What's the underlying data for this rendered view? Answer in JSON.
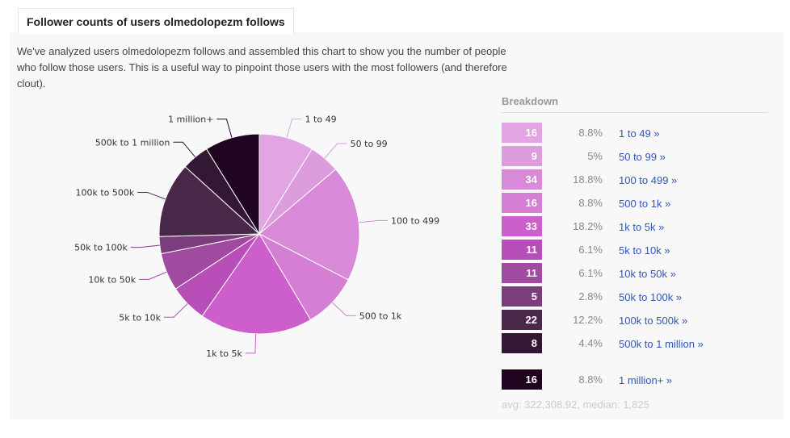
{
  "header": {
    "title": "Follower counts of users olmedolopezm follows"
  },
  "description": "We've analyzed users olmedolopezm follows and assembled this chart to show you the number of people who follow those users. This is a useful way to pinpoint those users with the most followers (and therefore clout).",
  "breakdown": {
    "title": "Breakdown",
    "rows": [
      {
        "count": "16",
        "pct": "8.8%",
        "label": "1 to 49 »"
      },
      {
        "count": "9",
        "pct": "5%",
        "label": "50 to 99 »"
      },
      {
        "count": "34",
        "pct": "18.8%",
        "label": "100 to 499 »"
      },
      {
        "count": "16",
        "pct": "8.8%",
        "label": "500 to 1k »"
      },
      {
        "count": "33",
        "pct": "18.2%",
        "label": "1k to 5k »"
      },
      {
        "count": "11",
        "pct": "6.1%",
        "label": "5k to 10k »"
      },
      {
        "count": "11",
        "pct": "6.1%",
        "label": "10k to 50k »"
      },
      {
        "count": "5",
        "pct": "2.8%",
        "label": "50k to 100k »"
      },
      {
        "count": "22",
        "pct": "12.2%",
        "label": "100k to 500k »"
      },
      {
        "count": "8",
        "pct": "4.4%",
        "label": "500k to 1 million »"
      },
      {
        "count": "16",
        "pct": "8.8%",
        "label": "1 million+ »"
      }
    ],
    "stats": "avg: 322,308.92, median: 1,825"
  },
  "chart_data": {
    "type": "pie",
    "categories": [
      "1 to 49",
      "50 to 99",
      "100 to 499",
      "500 to 1k",
      "1k to 5k",
      "5k to 10k",
      "10k to 50k",
      "50k to 100k",
      "100k to 500k",
      "500k to 1 million",
      "1 million+"
    ],
    "values": [
      16,
      9,
      34,
      16,
      33,
      11,
      11,
      5,
      22,
      8,
      16
    ],
    "colors": [
      "#e2a4e2",
      "#dd9cdd",
      "#d88ad8",
      "#d47ed4",
      "#cc5fcc",
      "#b84eb8",
      "#a04aa0",
      "#7c3d7c",
      "#4a284a",
      "#331833",
      "#1f0520"
    ],
    "legend": "right"
  }
}
